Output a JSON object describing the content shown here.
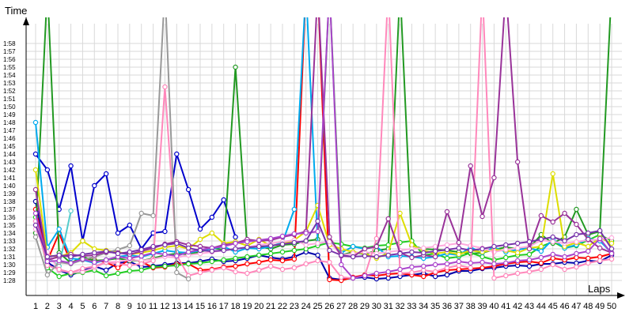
{
  "chart_data": {
    "type": "line",
    "xlabel": "Laps",
    "ylabel": "Time",
    "x": [
      1,
      2,
      3,
      4,
      5,
      6,
      7,
      8,
      9,
      10,
      11,
      12,
      13,
      14,
      15,
      16,
      17,
      18,
      19,
      20,
      21,
      22,
      23,
      24,
      25,
      26,
      27,
      28,
      29,
      30,
      31,
      32,
      33,
      34,
      35,
      36,
      37,
      38,
      39,
      40,
      41,
      42,
      43,
      44,
      45,
      46,
      47,
      48,
      49,
      50
    ],
    "xlim": [
      1,
      50
    ],
    "ylim_seconds": [
      87,
      120
    ],
    "y_tick_labels": [
      "1:28",
      "1:29",
      "1:30",
      "1:31",
      "1:32",
      "1:33",
      "1:34",
      "1:35",
      "1:36",
      "1:37",
      "1:38",
      "1:39",
      "1:40",
      "1:41",
      "1:42",
      "1:43",
      "1:44",
      "1:45",
      "1:46",
      "1:47",
      "1:48",
      "1:49",
      "1:50",
      "1:51",
      "1:52",
      "1:53",
      "1:54",
      "1:55",
      "1:56",
      "1:57",
      "1:58"
    ],
    "y_tick_values": [
      88,
      89,
      90,
      91,
      92,
      93,
      94,
      95,
      96,
      97,
      98,
      99,
      100,
      101,
      102,
      103,
      104,
      105,
      106,
      107,
      108,
      109,
      110,
      111,
      112,
      113,
      114,
      115,
      116,
      117,
      118
    ],
    "grid": true,
    "series": [
      {
        "color": "#0000cc",
        "values": [
          104,
          102,
          97,
          102.5,
          93,
          100,
          101.5,
          94,
          95,
          92,
          94,
          94.2,
          104,
          99.5,
          94.5,
          96,
          98.2,
          93.5,
          null,
          null,
          null,
          null,
          null,
          null,
          null,
          null,
          null,
          null,
          null,
          null,
          null,
          null,
          null,
          null,
          null,
          null,
          null,
          null,
          null,
          null,
          null,
          null,
          null,
          null,
          null,
          null,
          null,
          null,
          null,
          null
        ]
      },
      {
        "color": "#0000aa",
        "values": [
          98,
          90.3,
          89.3,
          88.7,
          89.2,
          89.8,
          89.3,
          90.2,
          90.4,
          89.7,
          89.8,
          90,
          90.2,
          90.2,
          90.4,
          90.7,
          90.4,
          90.5,
          90.8,
          91.2,
          90.9,
          90.7,
          91.0,
          91.6,
          91.2,
          88.3,
          88.1,
          88.3,
          88.4,
          88.2,
          88.3,
          88.5,
          88.7,
          88.9,
          88.5,
          88.7,
          89.2,
          89.2,
          89.5,
          89.6,
          89.8,
          89.9,
          89.8,
          90.1,
          90.1,
          90.3,
          90.2,
          90.5,
          90.4,
          91.2
        ]
      },
      {
        "color": "#ff0000",
        "values": [
          97,
          90.5,
          94,
          90.2,
          90.8,
          90.6,
          90.3,
          89.6,
          90.7,
          90.4,
          89.6,
          89.7,
          90.1,
          90.1,
          89.3,
          89.4,
          89.7,
          89.8,
          90.1,
          90.3,
          90.6,
          90.5,
          90.7,
          125,
          125,
          88.1,
          88.0,
          88.4,
          88.7,
          88.6,
          88.8,
          88.9,
          88.7,
          88.5,
          89.0,
          89.3,
          89.4,
          89.5,
          89.6,
          89.8,
          90.1,
          90.3,
          90.4,
          90.2,
          90.8,
          90.6,
          90.9,
          90.8,
          91.0,
          91.4
        ]
      },
      {
        "color": "#229922",
        "values": [
          94,
          125,
          91.5,
          90.2,
          91.0,
          90.5,
          90.6,
          90.8,
          90.5,
          90.5,
          90.8,
          91.2,
          91.4,
          91.3,
          91.6,
          92.1,
          91.9,
          115,
          92.2,
          92.3,
          92.0,
          92.5,
          92.6,
          93.0,
          93.2,
          125,
          91.2,
          91.6,
          91.3,
          91.8,
          92.0,
          125,
          92.4,
          92.0,
          91.9,
          91.8,
          91.6,
          91.4,
          91.5,
          91.9,
          92.2,
          92.0,
          92.1,
          93.8,
          92.7,
          93.5,
          97,
          93.8,
          94.2,
          125
        ]
      },
      {
        "color": "#22cc22",
        "values": [
          96,
          89.6,
          88.5,
          88.9,
          89.0,
          89.3,
          88.6,
          88.9,
          89.2,
          89.3,
          89.7,
          89.8,
          89.9,
          90.1,
          90.2,
          90.4,
          90.6,
          90.8,
          91.0,
          91.2,
          91.4,
          91.6,
          91.8,
          92.0,
          92.4,
          92.8,
          92.6,
          92.3,
          92.1,
          92.4,
          92.5,
          92.8,
          93.0,
          91.2,
          91.4,
          90.8,
          91.0,
          91.5,
          91.0,
          90.6,
          90.9,
          91.2,
          91.3,
          92.3,
          92.9,
          92.1,
          92.4,
          93.1,
          93.8,
          93.0
        ]
      },
      {
        "color": "#00aaee",
        "values": [
          108,
          92.2,
          94.5,
          90.8,
          90.6,
          90.2,
          90.6,
          91.0,
          91.2,
          91.0,
          91.4,
          91.8,
          91.6,
          91.5,
          91.8,
          92.0,
          92.3,
          91.6,
          92.1,
          92.0,
          92.3,
          92.8,
          97,
          125,
          92.7,
          92.9,
          91.5,
          92.3,
          92.0,
          92.3,
          91.0,
          91.1,
          91.0,
          90.8,
          91.0,
          91.4,
          91.2,
          92.2,
          91.5,
          92.2,
          91.6,
          91.9,
          92.1,
          91.7,
          93.2,
          92.1,
          92.5,
          93.3,
          93.0,
          91.5
        ]
      },
      {
        "color": "#55cccc",
        "values": [
          95.5,
          91.0,
          89.8,
          96.8,
          null,
          null,
          null,
          null,
          null,
          null,
          null,
          null,
          null,
          null,
          null,
          null,
          null,
          null,
          null,
          null,
          null,
          null,
          null,
          null,
          null,
          null,
          null,
          null,
          null,
          null,
          null,
          null,
          null,
          null,
          null,
          null,
          null,
          null,
          null,
          null,
          null,
          null,
          null,
          null,
          null,
          null,
          null,
          null,
          null,
          null
        ]
      },
      {
        "color": "#dddd00",
        "values": [
          102,
          91.2,
          91.0,
          91.5,
          93.0,
          92.0,
          91.8,
          91.6,
          91.3,
          91.5,
          91.8,
          92.2,
          92.4,
          92.0,
          93.2,
          94.0,
          92.7,
          92.9,
          92.4,
          93.2,
          92.4,
          92.6,
          93.1,
          94.2,
          97.5,
          92.5,
          92.0,
          91.6,
          91.4,
          90.8,
          91.5,
          96.5,
          92.5,
          91.8,
          91.4,
          91.6,
          91.3,
          91.8,
          91.6,
          91.9,
          91.8,
          91.5,
          92.1,
          92.3,
          101.5,
          92.3,
          92.8,
          92.3,
          93.4,
          92.7
        ]
      },
      {
        "color": "#ffaadd",
        "values": [
          94.5,
          91.6,
          89.3,
          89.0,
          89.1,
          89.6,
          90.3,
          90.4,
          90.6,
          90.5,
          90.7,
          91.0,
          90.9,
          91.2,
          91.4,
          91.6,
          91.8,
          92.0,
          92.2,
          92.5,
          92.7,
          92.9,
          93.1,
          92.5,
          92.7,
          92.9,
          91.2,
          91.4,
          91.6,
          91.4,
          91.6,
          91.8,
          92.0,
          92.1,
          92.3,
          92.5,
          92.7,
          92.4,
          92.1,
          91.6,
          91.9,
          92.1,
          92.3,
          93.1,
          92.9,
          92.7,
          92.9,
          93.1,
          93.2,
          93.4
        ]
      },
      {
        "color": "#ff88bb",
        "values": [
          95.5,
          89.9,
          89.4,
          89.0,
          89.5,
          89.8,
          90.3,
          90.1,
          89.9,
          90.1,
          90.5,
          112.5,
          91.2,
          88.6,
          89.0,
          89.3,
          89.6,
          89.1,
          88.9,
          89.3,
          89.8,
          89.4,
          89.6,
          90.1,
          90.5,
          90.3,
          88.4,
          88.3,
          88.6,
          93.3,
          125,
          88.9,
          89.0,
          89.3,
          89.1,
          89.6,
          89.9,
          89.6,
          125,
          88.3,
          88.6,
          88.9,
          89.1,
          89.4,
          90.0,
          89.4,
          89.7,
          90.2,
          90.5,
          90.7
        ]
      },
      {
        "color": "#999999",
        "values": [
          93.5,
          88.7,
          90.3,
          90.1,
          90.6,
          91.0,
          91.5,
          91.9,
          92.4,
          96.5,
          96.2,
          125,
          89.0,
          88.2,
          null,
          null,
          null,
          null,
          null,
          null,
          null,
          null,
          null,
          null,
          null,
          null,
          null,
          null,
          null,
          null,
          null,
          null,
          null,
          null,
          null,
          null,
          null,
          null,
          null,
          null,
          null,
          null,
          null,
          null,
          null,
          null,
          null,
          null,
          null,
          null
        ]
      },
      {
        "color": "#993399",
        "values": [
          99.5,
          90.6,
          91.0,
          91.3,
          91.1,
          91.2,
          91.6,
          91.5,
          91.3,
          91.7,
          92.1,
          92.6,
          92.9,
          92.5,
          92.3,
          92.1,
          92.5,
          92.7,
          93.2,
          93.0,
          93.1,
          93.5,
          93.8,
          94.2,
          125,
          93.5,
          91.1,
          91.0,
          92.0,
          92.3,
          95.8,
          91.5,
          90.9,
          91.2,
          91.0,
          96.7,
          92.8,
          102.5,
          96.1,
          101,
          125,
          103,
          92.0,
          96.2,
          95.4,
          96.5,
          95.1,
          93.2,
          92.1,
          91.5
        ]
      },
      {
        "color": "#aa44cc",
        "values": [
          96.5,
          90.4,
          90.5,
          90.2,
          90.7,
          90.3,
          90.6,
          91.0,
          90.8,
          91.1,
          91.5,
          91.3,
          91.1,
          91.6,
          91.9,
          92.1,
          92.3,
          92.7,
          92.9,
          93.1,
          93.3,
          93.6,
          93.9,
          94.0,
          94.2,
          125,
          90.0,
          88.3,
          88.6,
          88.9,
          89.1,
          89.4,
          89.7,
          89.8,
          90.0,
          90.1,
          90.4,
          90.2,
          90.3,
          90.1,
          90.2,
          90.5,
          90.6,
          90.9,
          91.3,
          91.0,
          91.4,
          91.7,
          93.3,
          91.4
        ]
      },
      {
        "color": "#7733aa",
        "values": [
          95,
          91.0,
          91.2,
          91.0,
          91.3,
          91.5,
          91.7,
          91.4,
          91.6,
          91.9,
          92.3,
          92.5,
          92.7,
          92.1,
          91.8,
          91.7,
          91.8,
          92.0,
          92.2,
          92.3,
          92.4,
          92.6,
          92.8,
          93.0,
          95.5,
          91.8,
          91.2,
          91.0,
          91.1,
          91.0,
          91.2,
          91.4,
          91.6,
          91.5,
          91.7,
          91.9,
          92.1,
          91.8,
          92.0,
          92.3,
          92.5,
          92.7,
          92.9,
          93.2,
          93.5,
          93.0,
          93.8,
          94.0,
          94.3,
          92.0
        ]
      }
    ]
  }
}
